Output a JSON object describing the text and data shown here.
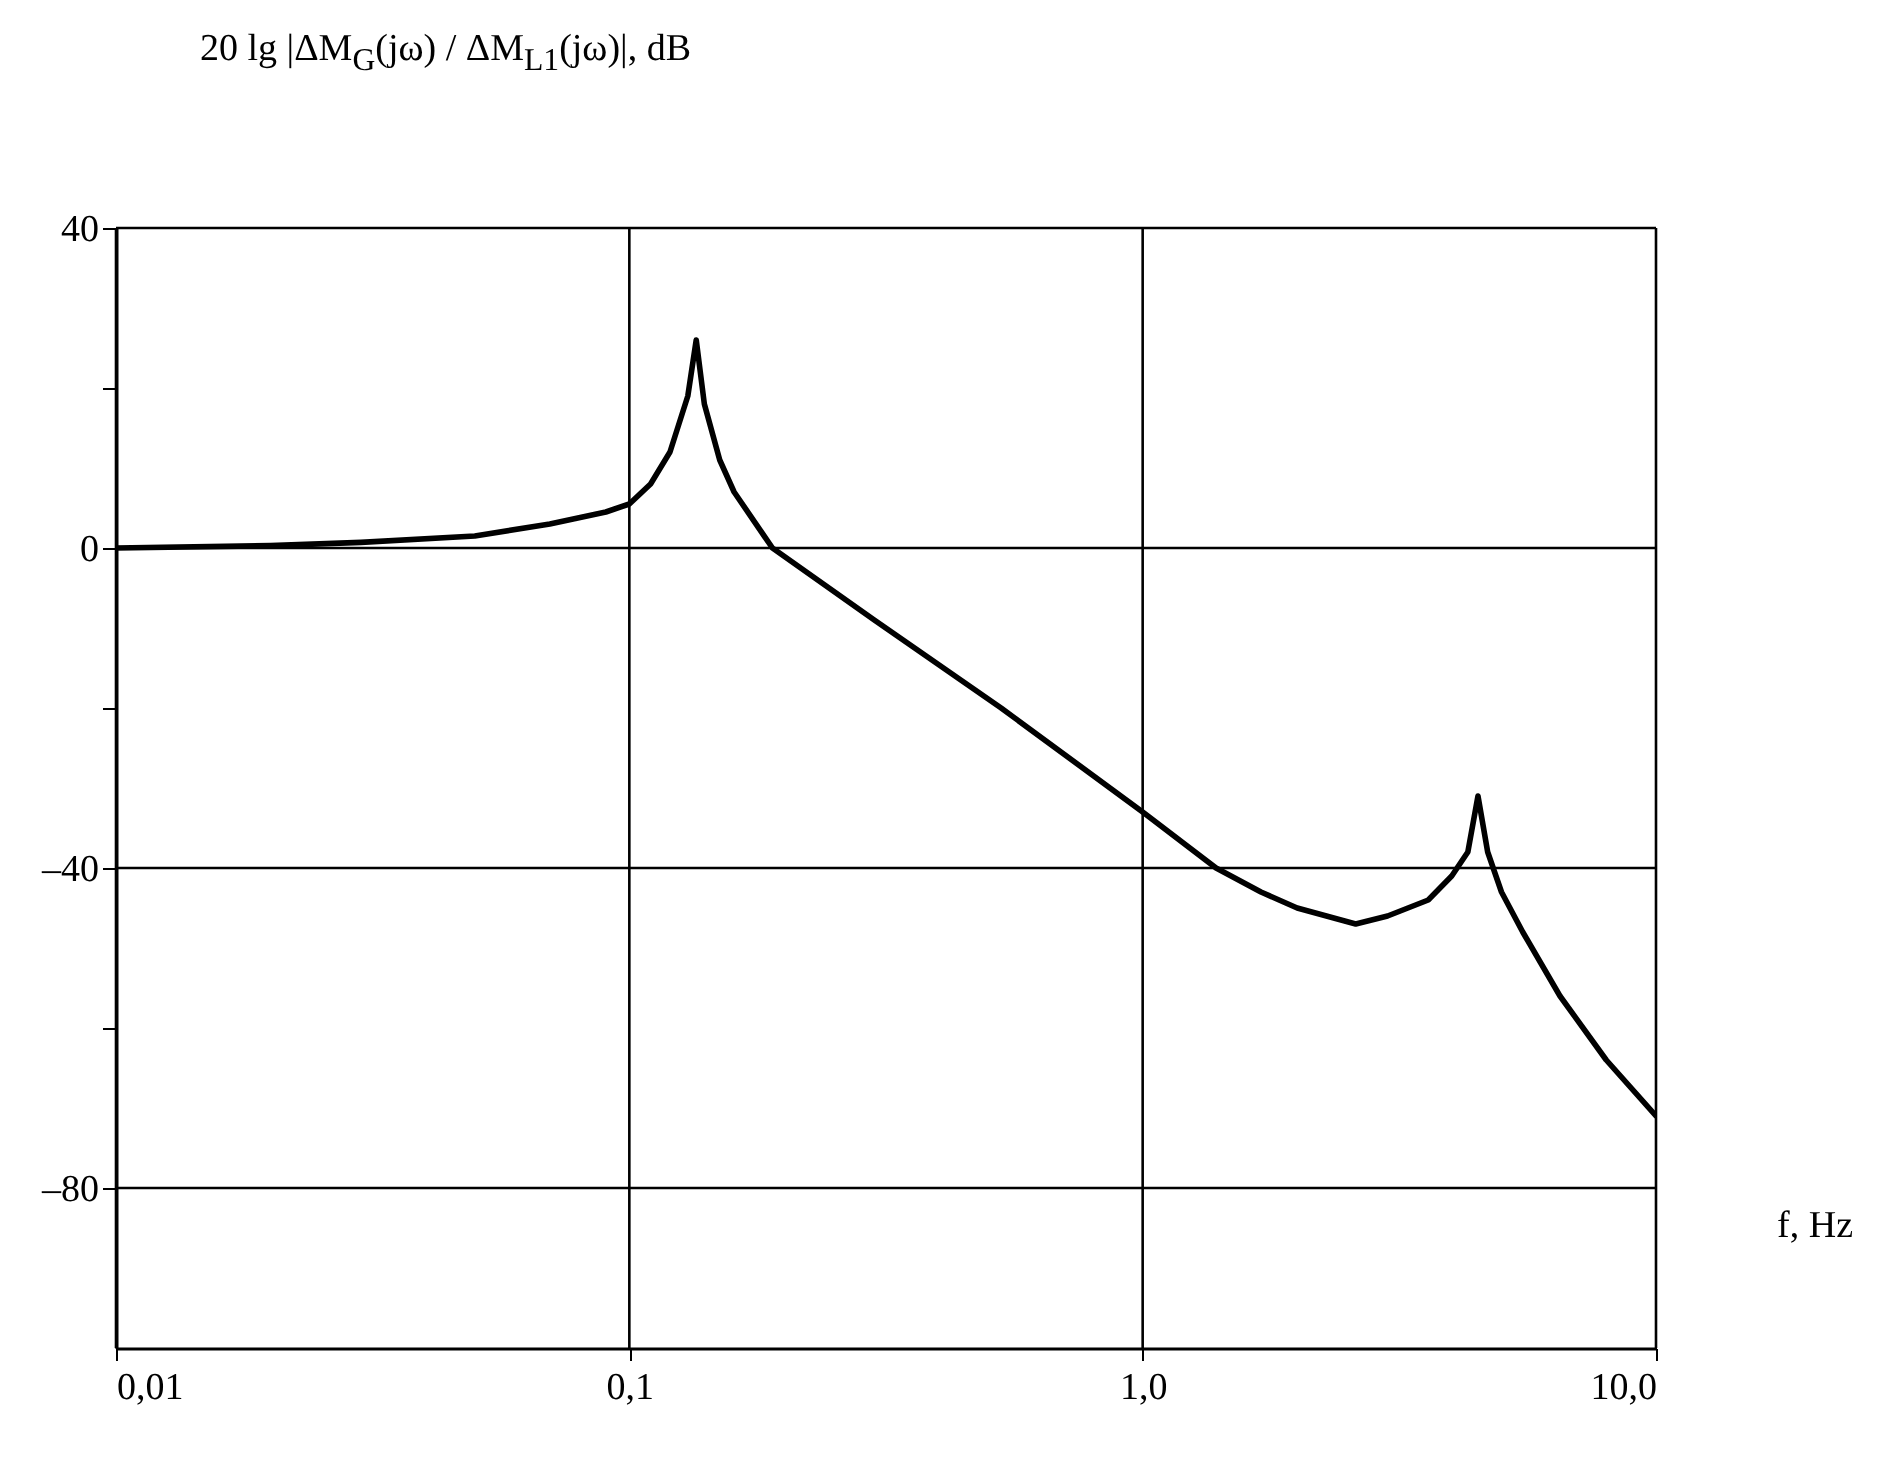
{
  "chart_data": {
    "type": "line",
    "xlabel": "f, Hz",
    "ylabel": "20 lg |ΔM$_{G}$(jω) / ΔM$_{L1}$(jω)|, dB",
    "log": "x",
    "grid": true,
    "xlim": [
      0.01,
      10
    ],
    "ylim": [
      -100,
      40
    ],
    "xticks": [
      {
        "value": 0.01,
        "label": "0,01"
      },
      {
        "value": 0.1,
        "label": "0,1"
      },
      {
        "value": 1,
        "label": "1,0"
      },
      {
        "value": 10,
        "label": "10,0"
      }
    ],
    "yticks": [
      40,
      {
        "value": 20,
        "label": null
      },
      0,
      {
        "value": -20,
        "label": null
      },
      {
        "value": -40,
        "label": "–40"
      },
      {
        "value": -60,
        "label": null
      },
      {
        "value": -80,
        "label": "–80"
      }
    ],
    "series": [
      {
        "color": "#000000",
        "x": [
          0.01,
          0.02,
          0.03,
          0.05,
          0.07,
          0.09,
          0.1,
          0.11,
          0.12,
          0.13,
          0.135,
          0.14,
          0.15,
          0.16,
          0.19,
          0.3,
          0.53,
          1,
          1.39,
          1.7,
          2,
          2.6,
          3,
          3.6,
          4,
          4.3,
          4.5,
          4.7,
          5,
          5.5,
          6.5,
          8,
          10
        ],
        "values": [
          0,
          0.3,
          0.7,
          1.5,
          3,
          4.5,
          5.5,
          8,
          12,
          19,
          26,
          18,
          11,
          7,
          0,
          -9,
          -20,
          -33,
          -40,
          -43,
          -45,
          -47,
          -46,
          -44,
          -41,
          -38,
          -31,
          -38,
          -43,
          -48,
          -56,
          -64,
          -71
        ]
      }
    ]
  }
}
